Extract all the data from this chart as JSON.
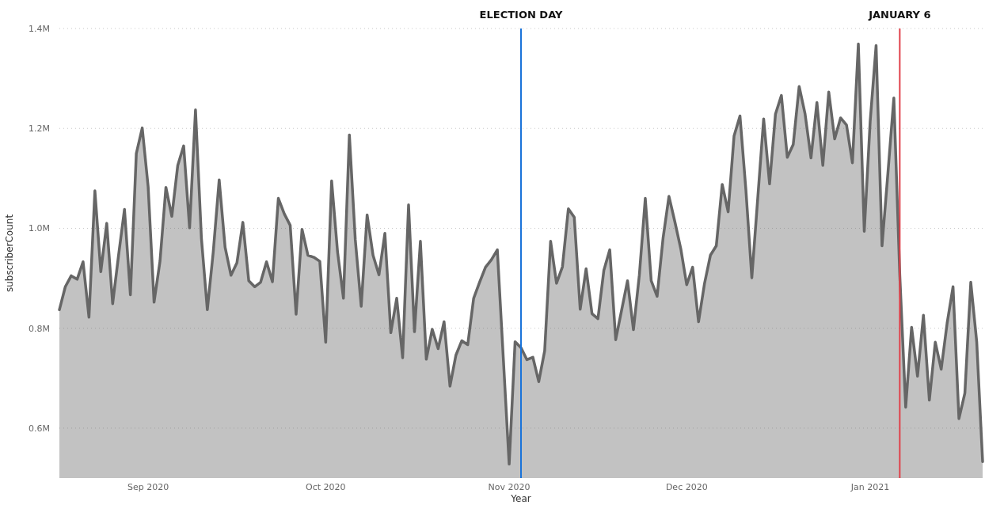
{
  "chart_data": {
    "type": "area",
    "xlabel": "Year",
    "ylabel": "subscriberCount",
    "x": [
      "2020-08-17",
      "2020-08-18",
      "2020-08-19",
      "2020-08-20",
      "2020-08-21",
      "2020-08-22",
      "2020-08-23",
      "2020-08-24",
      "2020-08-25",
      "2020-08-26",
      "2020-08-27",
      "2020-08-28",
      "2020-08-29",
      "2020-08-30",
      "2020-08-31",
      "2020-09-01",
      "2020-09-02",
      "2020-09-03",
      "2020-09-04",
      "2020-09-05",
      "2020-09-06",
      "2020-09-07",
      "2020-09-08",
      "2020-09-09",
      "2020-09-10",
      "2020-09-11",
      "2020-09-12",
      "2020-09-13",
      "2020-09-14",
      "2020-09-15",
      "2020-09-16",
      "2020-09-17",
      "2020-09-18",
      "2020-09-19",
      "2020-09-20",
      "2020-09-21",
      "2020-09-22",
      "2020-09-23",
      "2020-09-24",
      "2020-09-25",
      "2020-09-26",
      "2020-09-27",
      "2020-09-28",
      "2020-09-29",
      "2020-09-30",
      "2020-10-01",
      "2020-10-02",
      "2020-10-03",
      "2020-10-04",
      "2020-10-05",
      "2020-10-06",
      "2020-10-07",
      "2020-10-08",
      "2020-10-09",
      "2020-10-10",
      "2020-10-11",
      "2020-10-12",
      "2020-10-13",
      "2020-10-14",
      "2020-10-15",
      "2020-10-16",
      "2020-10-17",
      "2020-10-18",
      "2020-10-19",
      "2020-10-20",
      "2020-10-21",
      "2020-10-22",
      "2020-10-23",
      "2020-10-24",
      "2020-10-25",
      "2020-10-26",
      "2020-10-27",
      "2020-10-28",
      "2020-10-29",
      "2020-10-30",
      "2020-10-31",
      "2020-11-01",
      "2020-11-02",
      "2020-11-03",
      "2020-11-04",
      "2020-11-05",
      "2020-11-06",
      "2020-11-07",
      "2020-11-08",
      "2020-11-09",
      "2020-11-10",
      "2020-11-11",
      "2020-11-12",
      "2020-11-13",
      "2020-11-14",
      "2020-11-15",
      "2020-11-16",
      "2020-11-17",
      "2020-11-18",
      "2020-11-19",
      "2020-11-20",
      "2020-11-21",
      "2020-11-22",
      "2020-11-23",
      "2020-11-24",
      "2020-11-25",
      "2020-11-26",
      "2020-11-27",
      "2020-11-28",
      "2020-11-29",
      "2020-11-30",
      "2020-12-01",
      "2020-12-02",
      "2020-12-03",
      "2020-12-04",
      "2020-12-05",
      "2020-12-06",
      "2020-12-07",
      "2020-12-08",
      "2020-12-09",
      "2020-12-10",
      "2020-12-11",
      "2020-12-12",
      "2020-12-13",
      "2020-12-14",
      "2020-12-15",
      "2020-12-16",
      "2020-12-17",
      "2020-12-18",
      "2020-12-19",
      "2020-12-20",
      "2020-12-21",
      "2020-12-22",
      "2020-12-23",
      "2020-12-24",
      "2020-12-25",
      "2020-12-26",
      "2020-12-27",
      "2020-12-28",
      "2020-12-29",
      "2020-12-30",
      "2020-12-31",
      "2021-01-01",
      "2021-01-02",
      "2021-01-03",
      "2021-01-04",
      "2021-01-05",
      "2021-01-06",
      "2021-01-07",
      "2021-01-08",
      "2021-01-09",
      "2021-01-10",
      "2021-01-11",
      "2021-01-12",
      "2021-01-13",
      "2021-01-14",
      "2021-01-15",
      "2021-01-16",
      "2021-01-17",
      "2021-01-18",
      "2021-01-19",
      "2021-01-20"
    ],
    "series": [
      {
        "color": "#666666",
        "values": [
          837000,
          883000,
          905000,
          898000,
          933000,
          822000,
          1075000,
          913000,
          1010000,
          849000,
          946000,
          1038000,
          867000,
          1150000,
          1201000,
          1083000,
          852000,
          934000,
          1082000,
          1024000,
          1126000,
          1165000,
          1001000,
          1237000,
          980000,
          837000,
          953000,
          1097000,
          962000,
          906000,
          931000,
          1012000,
          895000,
          883000,
          892000,
          933000,
          893000,
          1060000,
          1029000,
          1006000,
          828000,
          998000,
          946000,
          942000,
          934000,
          772000,
          1095000,
          953000,
          860000,
          1187000,
          977000,
          844000,
          1027000,
          946000,
          907000,
          990000,
          791000,
          860000,
          741000,
          1047000,
          793000,
          974000,
          738000,
          798000,
          759000,
          813000,
          684000,
          746000,
          775000,
          767000,
          860000,
          892000,
          922000,
          937000,
          957000,
          742000,
          528000,
          773000,
          761000,
          737000,
          742000,
          693000,
          755000,
          974000,
          890000,
          923000,
          1039000,
          1022000,
          838000,
          919000,
          829000,
          819000,
          916000,
          957000,
          777000,
          836000,
          895000,
          797000,
          907000,
          1060000,
          895000,
          864000,
          980000,
          1064000,
          1013000,
          959000,
          887000,
          922000,
          813000,
          889000,
          946000,
          965000,
          1088000,
          1033000,
          1185000,
          1225000,
          1077000,
          901000,
          1060000,
          1219000,
          1089000,
          1229000,
          1266000,
          1142000,
          1168000,
          1284000,
          1229000,
          1141000,
          1252000,
          1126000,
          1273000,
          1179000,
          1221000,
          1207000,
          1131000,
          1369000,
          994000,
          1214000,
          1366000,
          965000,
          1111000,
          1261000,
          907000,
          642000,
          802000,
          704000,
          826000,
          656000,
          772000,
          718000,
          810000,
          883000,
          619000,
          670000,
          892000,
          773000,
          533000
        ]
      }
    ],
    "xlim": [
      "2020-08-17",
      "2021-01-20"
    ],
    "xticks": [
      {
        "value": "2020-09-01",
        "label": "Sep 2020"
      },
      {
        "value": "2020-10-01",
        "label": "Oct 2020"
      },
      {
        "value": "2020-11-01",
        "label": "Nov 2020"
      },
      {
        "value": "2020-12-01",
        "label": "Dec 2020"
      },
      {
        "value": "2021-01-01",
        "label": "Jan 2021"
      }
    ],
    "ylim": [
      500000,
      1400000
    ],
    "yticks": [
      {
        "value": 600000,
        "label": "0.6M"
      },
      {
        "value": 800000,
        "label": "0.8M"
      },
      {
        "value": 1000000,
        "label": "1.0M"
      },
      {
        "value": 1200000,
        "label": "1.2M"
      },
      {
        "value": 1400000,
        "label": "1.4M"
      }
    ],
    "grid": "y",
    "ref_lines": [
      {
        "axis": "x",
        "value": "2020-11-03",
        "label": "ELECTION DAY",
        "color": "#1a73d9"
      },
      {
        "axis": "x",
        "value": "2021-01-06",
        "label": "JANUARY 6",
        "color": "#e0404a"
      }
    ]
  }
}
